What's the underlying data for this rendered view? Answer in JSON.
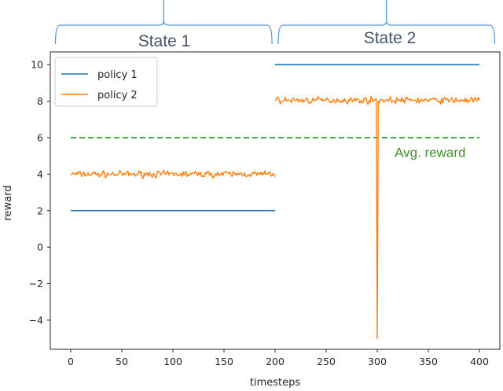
{
  "chart_data": {
    "type": "line",
    "xlabel": "timesteps",
    "ylabel": "reward",
    "xlim": [
      -20,
      420
    ],
    "ylim": [
      -5.6,
      10.7
    ],
    "xticks": [
      0,
      50,
      100,
      150,
      200,
      250,
      300,
      350,
      400
    ],
    "yticks": [
      -4,
      -2,
      0,
      2,
      4,
      6,
      8,
      10
    ],
    "grid": false,
    "legend_position": "top-left",
    "series": [
      {
        "name": "policy 1",
        "color": "#1f77b4",
        "segments": [
          {
            "x": [
              0,
              200
            ],
            "y": [
              2,
              2
            ]
          },
          {
            "x": [
              200,
              400
            ],
            "y": [
              10,
              10
            ]
          }
        ]
      },
      {
        "name": "policy 2",
        "color": "#ff7f0e",
        "segments": [
          {
            "x_range": [
              0,
              200
            ],
            "mean": 4.0,
            "noise": 0.12
          },
          {
            "x_range": [
              200,
              400
            ],
            "mean": 8.05,
            "noise": 0.12,
            "dip": {
              "x": 300,
              "y": -5
            }
          }
        ]
      }
    ],
    "reference_line": {
      "y": 6,
      "x_range": [
        0,
        400
      ],
      "color": "#2ca02c",
      "style": "dashed"
    },
    "annotations": [
      {
        "text": "Avg. reward",
        "x": 317,
        "y": 5.2,
        "color": "#3f8f2a"
      }
    ],
    "states": [
      {
        "label": "State 1",
        "x_range": [
          -15,
          197
        ]
      },
      {
        "label": "State 2",
        "x_range": [
          203,
          415
        ]
      }
    ],
    "bracket_color": "#5b9bd5"
  }
}
